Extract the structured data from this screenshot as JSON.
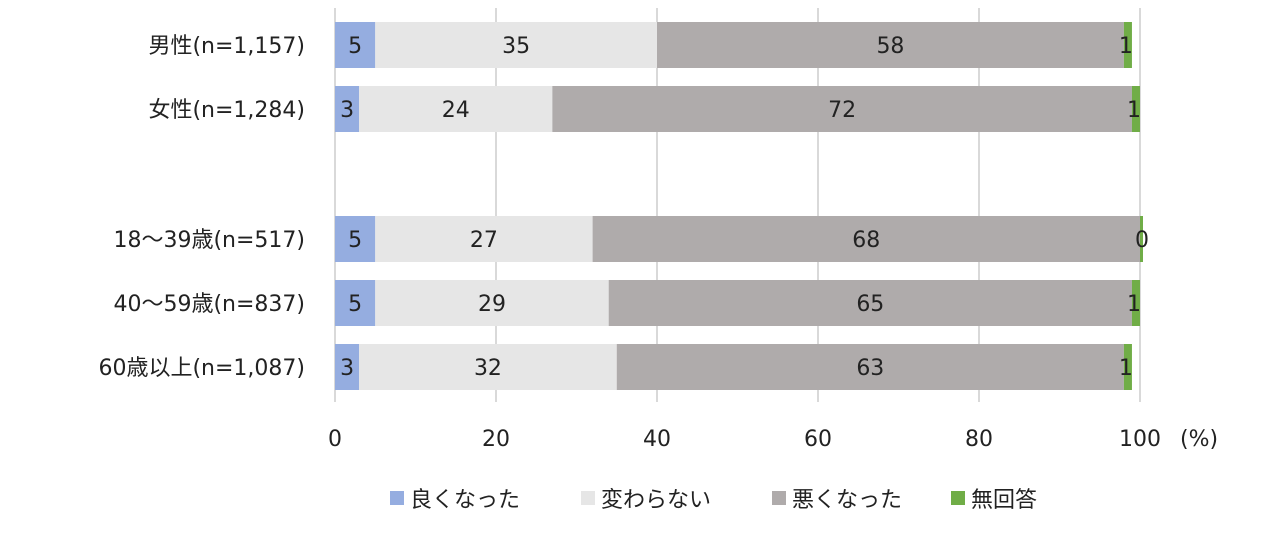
{
  "chart_data": {
    "type": "bar",
    "orientation": "horizontal",
    "stacked": true,
    "categories": [
      "男性(n=1,157)",
      "女性(n=1,284)",
      "",
      "18～39歳(n=517)",
      "40～59歳(n=837)",
      "60歳以上(n=1,087)"
    ],
    "series": [
      {
        "name": "良くなった",
        "color": "#95ADE0",
        "values": [
          5,
          3,
          null,
          5,
          5,
          3
        ]
      },
      {
        "name": "変わらない",
        "color": "#E6E6E6",
        "values": [
          35,
          24,
          null,
          27,
          29,
          32
        ]
      },
      {
        "name": "悪くなった",
        "color": "#AFABAB",
        "values": [
          58,
          72,
          null,
          68,
          65,
          63
        ]
      },
      {
        "name": "無回答",
        "color": "#70AD47",
        "values": [
          1,
          1,
          null,
          0,
          1,
          1
        ]
      }
    ],
    "xlim": [
      0,
      100
    ],
    "xticks": [
      "0",
      "20",
      "40",
      "60",
      "80",
      "100"
    ],
    "unit": "(%)",
    "grid": true,
    "legend": "bottom-center"
  }
}
